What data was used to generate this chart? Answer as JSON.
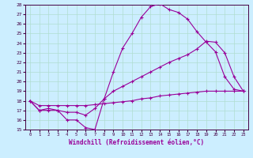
{
  "xlabel": "Windchill (Refroidissement éolien,°C)",
  "bg_color": "#cceeff",
  "grid_color": "#b0ddd0",
  "line_color": "#990099",
  "xlim": [
    -0.5,
    23.5
  ],
  "ylim": [
    15,
    28
  ],
  "yticks": [
    15,
    16,
    17,
    18,
    19,
    20,
    21,
    22,
    23,
    24,
    25,
    26,
    27,
    28
  ],
  "xticks": [
    0,
    1,
    2,
    3,
    4,
    5,
    6,
    7,
    8,
    9,
    10,
    11,
    12,
    13,
    14,
    15,
    16,
    17,
    18,
    19,
    20,
    21,
    22,
    23
  ],
  "line1_x": [
    0,
    1,
    2,
    3,
    4,
    5,
    6,
    7,
    8,
    9,
    10,
    11,
    12,
    13,
    14,
    15,
    16,
    17,
    18,
    19,
    20,
    21,
    22,
    23
  ],
  "line1_y": [
    18,
    17,
    17,
    17,
    16,
    16,
    15.2,
    15,
    18.2,
    21,
    23.5,
    25,
    26.7,
    27.8,
    28.1,
    27.5,
    27.2,
    26.5,
    25.2,
    24.1,
    23.1,
    20.5,
    19.2,
    19.0
  ],
  "line2_x": [
    0,
    1,
    2,
    3,
    4,
    5,
    6,
    7,
    8,
    9,
    10,
    11,
    12,
    13,
    14,
    15,
    16,
    17,
    18,
    19,
    20,
    21,
    22,
    23
  ],
  "line2_y": [
    18,
    17,
    17.2,
    17.0,
    16.8,
    16.8,
    16.5,
    17.2,
    18.2,
    19.0,
    19.5,
    20.0,
    20.5,
    21.0,
    21.5,
    22.0,
    22.4,
    22.8,
    23.4,
    24.2,
    24.1,
    23.0,
    20.5,
    19.0
  ],
  "line3_x": [
    0,
    1,
    2,
    3,
    4,
    5,
    6,
    7,
    8,
    9,
    10,
    11,
    12,
    13,
    14,
    15,
    16,
    17,
    18,
    19,
    20,
    21,
    22,
    23
  ],
  "line3_y": [
    18,
    17.5,
    17.5,
    17.5,
    17.5,
    17.5,
    17.5,
    17.6,
    17.7,
    17.8,
    17.9,
    18.0,
    18.2,
    18.3,
    18.5,
    18.6,
    18.7,
    18.8,
    18.9,
    19.0,
    19.0,
    19.0,
    19.0,
    19.0
  ]
}
